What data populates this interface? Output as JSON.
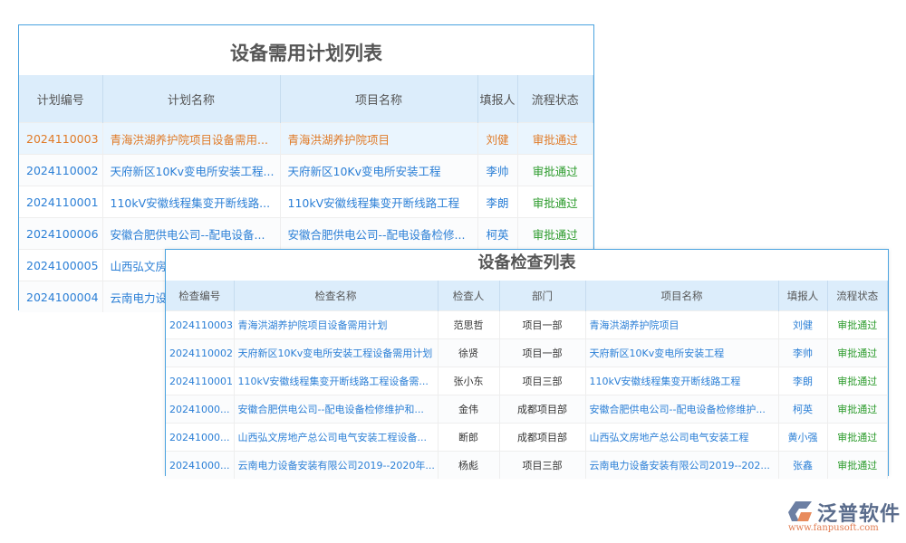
{
  "plan": {
    "title": "设备需用计划列表",
    "headers": [
      "计划编号",
      "计划名称",
      "项目名称",
      "填报人",
      "流程状态"
    ],
    "rows": [
      [
        "2024110003",
        "青海洪湖养护院项目设备需用...",
        "青海洪湖养护院项目",
        "刘健",
        "审批通过"
      ],
      [
        "2024110002",
        "天府新区10Kv变电所安装工程...",
        "天府新区10Kv变电所安装工程",
        "李帅",
        "审批通过"
      ],
      [
        "2024110001",
        "110kV安徽线程集变开断线路...",
        "110kV安徽线程集变开断线路工程",
        "李朗",
        "审批通过"
      ],
      [
        "2024100006",
        "安徽合肥供电公司--配电设备...",
        "安徽合肥供电公司--配电设备检修...",
        "柯英",
        "审批通过"
      ],
      [
        "2024100005",
        "山西弘文房",
        "",
        "",
        ""
      ],
      [
        "2024100004",
        "云南电力设",
        "",
        "",
        ""
      ]
    ]
  },
  "check": {
    "title": "设备检查列表",
    "headers": [
      "检查编号",
      "检查名称",
      "检查人",
      "部门",
      "项目名称",
      "填报人",
      "流程状态"
    ],
    "rows": [
      [
        "2024110003",
        "青海洪湖养护院项目设备需用计划",
        "范思哲",
        "项目一部",
        "青海洪湖养护院项目",
        "刘健",
        "审批通过"
      ],
      [
        "2024110002",
        "天府新区10Kv变电所安装工程设备需用计划",
        "徐贤",
        "项目一部",
        "天府新区10Kv变电所安装工程",
        "李帅",
        "审批通过"
      ],
      [
        "2024110001",
        "110kV安徽线程集变开断线路工程设备需...",
        "张小东",
        "项目三部",
        "110kV安徽线程集变开断线路工程",
        "李朗",
        "审批通过"
      ],
      [
        "20241000...",
        "安徽合肥供电公司--配电设备检修维护和...",
        "金伟",
        "成都项目部",
        "安徽合肥供电公司--配电设备检修维护...",
        "柯英",
        "审批通过"
      ],
      [
        "20241000...",
        "山西弘文房地产总公司电气安装工程设备...",
        "断郎",
        "成都项目部",
        "山西弘文房地产总公司电气安装工程",
        "黄小强",
        "审批通过"
      ],
      [
        "20241000...",
        "云南电力设备安装有限公司2019--2020年...",
        "杨彪",
        "项目三部",
        "云南电力设备安装有限公司2019--202...",
        "张鑫",
        "审批通过"
      ]
    ]
  },
  "logo": {
    "name": "泛普软件",
    "url": "www.fanpusoft.com"
  },
  "colors": {
    "link": "#2b7fd6",
    "selected": "#e07b28",
    "approved": "#2a9a2a",
    "header": "#dcedfb",
    "border": "#4aa3e0"
  }
}
